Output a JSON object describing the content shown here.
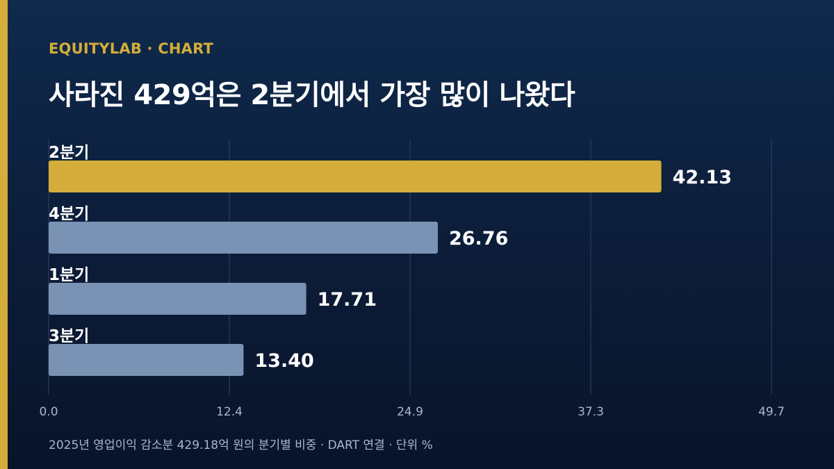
{
  "brand": "EQUITYLAB · CHART",
  "title": "사라진 429억은 2분기에서 가장 많이 나왔다",
  "source": "2025년 영업이익 감소분 429.18억 원의 분기별 비중 · DART 연결 · 단위 %",
  "colors": {
    "accent": "#d4ad3a",
    "bar": "#7a93b4",
    "grid": "#2e4466",
    "text": "#ffffff",
    "tick": "#a9b8cf"
  },
  "chart_data": {
    "type": "bar",
    "orientation": "horizontal",
    "categories": [
      "2분기",
      "4분기",
      "1분기",
      "3분기"
    ],
    "values": [
      42.13,
      26.76,
      17.71,
      13.4
    ],
    "value_labels": [
      "42.13",
      "26.76",
      "17.71",
      "13.40"
    ],
    "highlight_index": 0,
    "xticks": [
      "0.0",
      "12.4",
      "24.9",
      "37.3",
      "49.7"
    ],
    "xlim": [
      0,
      49.7
    ],
    "grid": true,
    "unit": "%"
  }
}
